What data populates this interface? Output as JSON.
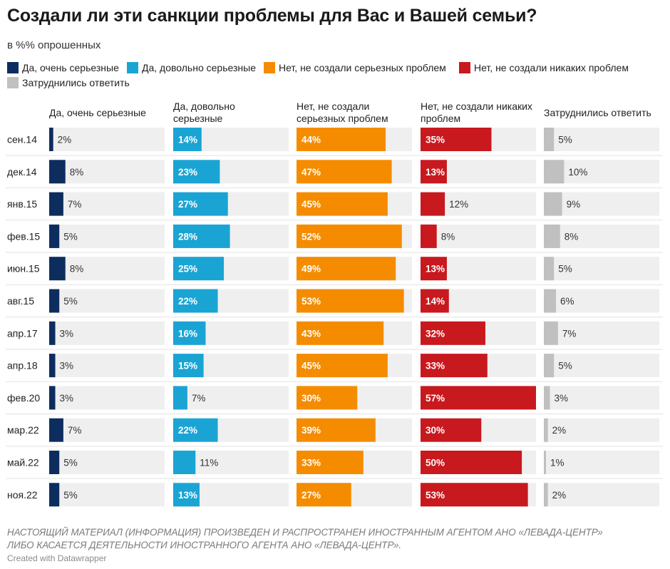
{
  "title": "Создали ли эти санкции проблемы для Вас и Вашей семьи?",
  "subtitle": "в %% опрошенных",
  "colors": {
    "very_serious": "#0d2d5e",
    "rather_serious": "#1aa4d4",
    "not_serious": "#f58c00",
    "no_problems": "#c8191e",
    "hard_to_say": "#c0c0c0",
    "track": "#efefef"
  },
  "footnote_line1": "НАСТОЯЩИЙ МАТЕРИАЛ (ИНФОРМАЦИЯ) ПРОИЗВЕДЕН И РАСПРОСТРАНЕН ИНОСТРАННЫМ АГЕНТОМ АНО «ЛЕВАДА-ЦЕНТР»",
  "footnote_line2": "ЛИБО КАСАЕТСЯ ДЕЯТЕЛЬНОСТИ ИНОСТРАННОГО АГЕНТА АНО «ЛЕВАДА-ЦЕНТР».",
  "credit": "Created with Datawrapper",
  "chart_data": {
    "type": "bar",
    "orientation": "horizontal",
    "layout": "small-multiples",
    "title": "Создали ли эти санкции проблемы для Вас и Вашей семьи?",
    "subtitle": "в %% опрошенных",
    "xlim": [
      0,
      57
    ],
    "legend_position": "top",
    "categories": [
      "сен.14",
      "дек.14",
      "янв.15",
      "фев.15",
      "июн.15",
      "авг.15",
      "апр.17",
      "апр.18",
      "фев.20",
      "мар.22",
      "май.22",
      "ноя.22"
    ],
    "series": [
      {
        "name": "Да, очень серьезные",
        "header": [
          "Да, очень серьезные"
        ],
        "color": "#0d2d5e",
        "values": [
          2,
          8,
          7,
          5,
          8,
          5,
          3,
          3,
          3,
          7,
          5,
          5
        ]
      },
      {
        "name": "Да, довольно серьезные",
        "header": [
          "Да, довольно",
          "серьезные"
        ],
        "color": "#1aa4d4",
        "values": [
          14,
          23,
          27,
          28,
          25,
          22,
          16,
          15,
          7,
          22,
          11,
          13
        ]
      },
      {
        "name": "Нет, не создали серьезных проблем",
        "header": [
          "Нет, не создали",
          "серьезных проблем"
        ],
        "color": "#f58c00",
        "values": [
          44,
          47,
          45,
          52,
          49,
          53,
          43,
          45,
          30,
          39,
          33,
          27
        ]
      },
      {
        "name": "Нет, не создали никаких проблем",
        "header": [
          "Нет, не создали никаких",
          "проблем"
        ],
        "color": "#c8191e",
        "values": [
          35,
          13,
          12,
          8,
          13,
          14,
          32,
          33,
          57,
          30,
          50,
          53
        ]
      },
      {
        "name": "Затруднились ответить",
        "header": [
          "Затруднились ответить"
        ],
        "color": "#c0c0c0",
        "values": [
          5,
          10,
          9,
          8,
          5,
          6,
          7,
          5,
          3,
          2,
          1,
          2
        ]
      }
    ]
  }
}
